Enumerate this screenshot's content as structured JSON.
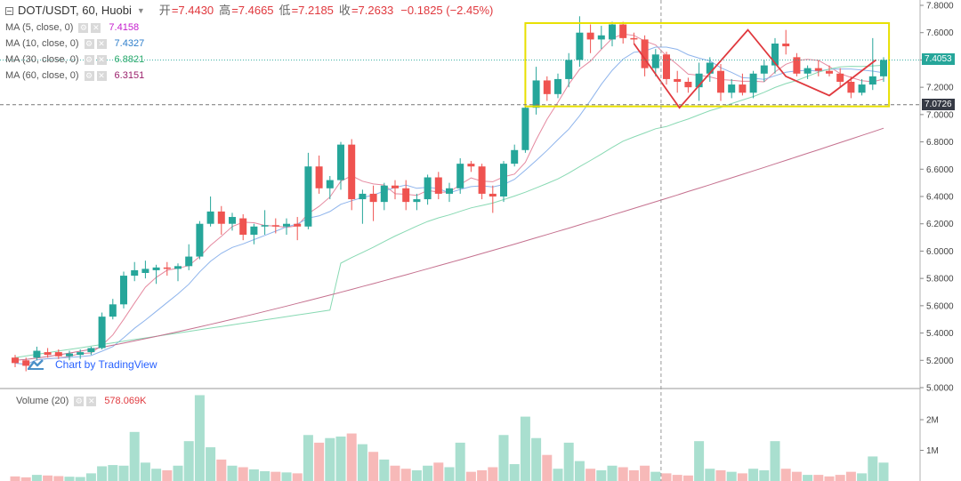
{
  "header": {
    "symbol": "DOT/USDT, 60, Huobi",
    "ohlc": [
      {
        "key": "开",
        "value": "=7.4430"
      },
      {
        "key": "高",
        "value": "=7.4665"
      },
      {
        "key": "低",
        "value": "=7.2185"
      },
      {
        "key": "收",
        "value": "=7.2633"
      }
    ],
    "change": "−0.1825 (−2.45%)"
  },
  "indicators": [
    {
      "label": "MA (5, close, 0)",
      "value": "7.4158",
      "color": "#c51cce"
    },
    {
      "label": "MA (10, close, 0)",
      "value": "7.4327",
      "color": "#2e7ecb"
    },
    {
      "label": "MA (30, close, 0)",
      "value": "6.8821",
      "color": "#26a86a"
    },
    {
      "label": "MA (60, close, 0)",
      "value": "6.3151",
      "color": "#9a1f6b"
    }
  ],
  "volume_legend": {
    "label": "Volume (20)",
    "value": "578.069K"
  },
  "watermark": "Chart by TradingView",
  "price_tags": {
    "last": "7.4053",
    "crosshair": "7.0726"
  },
  "chart_data": {
    "type": "candlestick",
    "ylim": [
      5.0,
      7.8
    ],
    "y_ticks": [
      "7.8000",
      "7.6000",
      "7.4000",
      "7.2000",
      "7.0000",
      "6.8000",
      "6.6000",
      "6.4000",
      "6.2000",
      "6.0000",
      "5.8000",
      "5.6000",
      "5.4000",
      "5.2000",
      "5.0000"
    ],
    "y_tick_values": [
      7.8,
      7.6,
      7.4,
      7.2,
      7.0,
      6.8,
      6.6,
      6.4,
      6.2,
      6.0,
      5.8,
      5.6,
      5.4,
      5.2,
      5.0
    ],
    "vol_ticks": [
      "2M",
      "1M"
    ],
    "vol_tick_values": [
      2000000,
      1000000
    ],
    "vol_ylim": [
      0,
      2900000
    ],
    "candles": [
      {
        "o": 5.22,
        "h": 5.24,
        "l": 5.15,
        "c": 5.18,
        "v": 150000
      },
      {
        "o": 5.2,
        "h": 5.22,
        "l": 5.12,
        "c": 5.16,
        "v": 120000
      },
      {
        "o": 5.22,
        "h": 5.3,
        "l": 5.2,
        "c": 5.27,
        "v": 200000
      },
      {
        "o": 5.26,
        "h": 5.29,
        "l": 5.22,
        "c": 5.24,
        "v": 180000
      },
      {
        "o": 5.26,
        "h": 5.28,
        "l": 5.21,
        "c": 5.23,
        "v": 160000
      },
      {
        "o": 5.23,
        "h": 5.27,
        "l": 5.2,
        "c": 5.25,
        "v": 140000
      },
      {
        "o": 5.24,
        "h": 5.28,
        "l": 5.21,
        "c": 5.26,
        "v": 130000
      },
      {
        "o": 5.26,
        "h": 5.3,
        "l": 5.24,
        "c": 5.29,
        "v": 250000
      },
      {
        "o": 5.29,
        "h": 5.55,
        "l": 5.28,
        "c": 5.52,
        "v": 480000
      },
      {
        "o": 5.52,
        "h": 5.65,
        "l": 5.5,
        "c": 5.61,
        "v": 520000
      },
      {
        "o": 5.61,
        "h": 5.85,
        "l": 5.58,
        "c": 5.82,
        "v": 500000
      },
      {
        "o": 5.82,
        "h": 5.92,
        "l": 5.78,
        "c": 5.86,
        "v": 1600000
      },
      {
        "o": 5.84,
        "h": 5.93,
        "l": 5.8,
        "c": 5.87,
        "v": 600000
      },
      {
        "o": 5.86,
        "h": 5.9,
        "l": 5.76,
        "c": 5.88,
        "v": 400000
      },
      {
        "o": 5.88,
        "h": 5.92,
        "l": 5.82,
        "c": 5.87,
        "v": 350000
      },
      {
        "o": 5.87,
        "h": 5.91,
        "l": 5.78,
        "c": 5.89,
        "v": 500000
      },
      {
        "o": 5.89,
        "h": 6.05,
        "l": 5.86,
        "c": 5.96,
        "v": 1300000
      },
      {
        "o": 5.96,
        "h": 6.22,
        "l": 5.94,
        "c": 6.2,
        "v": 2800000
      },
      {
        "o": 6.2,
        "h": 6.4,
        "l": 6.18,
        "c": 6.29,
        "v": 1100000
      },
      {
        "o": 6.29,
        "h": 6.33,
        "l": 6.12,
        "c": 6.2,
        "v": 700000
      },
      {
        "o": 6.2,
        "h": 6.28,
        "l": 6.15,
        "c": 6.25,
        "v": 500000
      },
      {
        "o": 6.24,
        "h": 6.27,
        "l": 6.08,
        "c": 6.12,
        "v": 450000
      },
      {
        "o": 6.12,
        "h": 6.2,
        "l": 6.05,
        "c": 6.18,
        "v": 380000
      },
      {
        "o": 6.18,
        "h": 6.3,
        "l": 6.12,
        "c": 6.19,
        "v": 320000
      },
      {
        "o": 6.19,
        "h": 6.24,
        "l": 6.13,
        "c": 6.18,
        "v": 300000
      },
      {
        "o": 6.18,
        "h": 6.24,
        "l": 6.12,
        "c": 6.2,
        "v": 280000
      },
      {
        "o": 6.2,
        "h": 6.25,
        "l": 6.08,
        "c": 6.18,
        "v": 250000
      },
      {
        "o": 6.18,
        "h": 6.72,
        "l": 6.16,
        "c": 6.62,
        "v": 1500000
      },
      {
        "o": 6.62,
        "h": 6.7,
        "l": 6.42,
        "c": 6.46,
        "v": 1250000
      },
      {
        "o": 6.46,
        "h": 6.55,
        "l": 6.38,
        "c": 6.52,
        "v": 1400000
      },
      {
        "o": 6.52,
        "h": 6.8,
        "l": 6.45,
        "c": 6.78,
        "v": 1450000
      },
      {
        "o": 6.78,
        "h": 6.82,
        "l": 6.3,
        "c": 6.38,
        "v": 1550000
      },
      {
        "o": 6.38,
        "h": 6.45,
        "l": 6.2,
        "c": 6.42,
        "v": 1200000
      },
      {
        "o": 6.42,
        "h": 6.48,
        "l": 6.22,
        "c": 6.36,
        "v": 950000
      },
      {
        "o": 6.36,
        "h": 6.5,
        "l": 6.3,
        "c": 6.48,
        "v": 700000
      },
      {
        "o": 6.48,
        "h": 6.52,
        "l": 6.38,
        "c": 6.46,
        "v": 500000
      },
      {
        "o": 6.46,
        "h": 6.52,
        "l": 6.3,
        "c": 6.36,
        "v": 400000
      },
      {
        "o": 6.36,
        "h": 6.42,
        "l": 6.3,
        "c": 6.38,
        "v": 350000
      },
      {
        "o": 6.38,
        "h": 6.56,
        "l": 6.34,
        "c": 6.54,
        "v": 500000
      },
      {
        "o": 6.54,
        "h": 6.58,
        "l": 6.38,
        "c": 6.42,
        "v": 600000
      },
      {
        "o": 6.42,
        "h": 6.5,
        "l": 6.36,
        "c": 6.46,
        "v": 450000
      },
      {
        "o": 6.46,
        "h": 6.68,
        "l": 6.42,
        "c": 6.64,
        "v": 1250000
      },
      {
        "o": 6.64,
        "h": 6.66,
        "l": 6.58,
        "c": 6.62,
        "v": 300000
      },
      {
        "o": 6.62,
        "h": 6.64,
        "l": 6.38,
        "c": 6.42,
        "v": 350000
      },
      {
        "o": 6.42,
        "h": 6.48,
        "l": 6.28,
        "c": 6.4,
        "v": 450000
      },
      {
        "o": 6.4,
        "h": 6.66,
        "l": 6.36,
        "c": 6.64,
        "v": 1500000
      },
      {
        "o": 6.64,
        "h": 6.78,
        "l": 6.62,
        "c": 6.74,
        "v": 550000
      },
      {
        "o": 6.74,
        "h": 7.3,
        "l": 6.72,
        "c": 7.05,
        "v": 2100000
      },
      {
        "o": 7.05,
        "h": 7.35,
        "l": 7.0,
        "c": 7.25,
        "v": 1400000
      },
      {
        "o": 7.25,
        "h": 7.28,
        "l": 7.1,
        "c": 7.15,
        "v": 850000
      },
      {
        "o": 7.15,
        "h": 7.3,
        "l": 7.12,
        "c": 7.26,
        "v": 400000
      },
      {
        "o": 7.26,
        "h": 7.45,
        "l": 7.2,
        "c": 7.4,
        "v": 1250000
      },
      {
        "o": 7.4,
        "h": 7.72,
        "l": 7.35,
        "c": 7.6,
        "v": 650000
      },
      {
        "o": 7.6,
        "h": 7.66,
        "l": 7.45,
        "c": 7.55,
        "v": 400000
      },
      {
        "o": 7.55,
        "h": 7.65,
        "l": 7.48,
        "c": 7.58,
        "v": 350000
      },
      {
        "o": 7.55,
        "h": 7.68,
        "l": 7.5,
        "c": 7.66,
        "v": 500000
      },
      {
        "o": 7.66,
        "h": 7.68,
        "l": 7.52,
        "c": 7.56,
        "v": 450000
      },
      {
        "o": 7.56,
        "h": 7.6,
        "l": 7.52,
        "c": 7.55,
        "v": 350000
      },
      {
        "o": 7.55,
        "h": 7.58,
        "l": 7.28,
        "c": 7.34,
        "v": 500000
      },
      {
        "o": 7.34,
        "h": 7.48,
        "l": 7.28,
        "c": 7.44,
        "v": 300000
      },
      {
        "o": 7.44,
        "h": 7.46,
        "l": 7.22,
        "c": 7.26,
        "v": 250000
      },
      {
        "o": 7.26,
        "h": 7.32,
        "l": 7.16,
        "c": 7.24,
        "v": 200000
      },
      {
        "o": 7.24,
        "h": 7.27,
        "l": 7.16,
        "c": 7.2,
        "v": 180000
      },
      {
        "o": 7.2,
        "h": 7.38,
        "l": 7.1,
        "c": 7.3,
        "v": 1300000
      },
      {
        "o": 7.3,
        "h": 7.42,
        "l": 7.24,
        "c": 7.38,
        "v": 400000
      },
      {
        "o": 7.32,
        "h": 7.37,
        "l": 7.1,
        "c": 7.16,
        "v": 350000
      },
      {
        "o": 7.16,
        "h": 7.26,
        "l": 7.12,
        "c": 7.22,
        "v": 300000
      },
      {
        "o": 7.22,
        "h": 7.3,
        "l": 7.14,
        "c": 7.16,
        "v": 250000
      },
      {
        "o": 7.16,
        "h": 7.32,
        "l": 7.12,
        "c": 7.3,
        "v": 400000
      },
      {
        "o": 7.3,
        "h": 7.4,
        "l": 7.24,
        "c": 7.36,
        "v": 350000
      },
      {
        "o": 7.36,
        "h": 7.56,
        "l": 7.3,
        "c": 7.52,
        "v": 1300000
      },
      {
        "o": 7.52,
        "h": 7.62,
        "l": 7.44,
        "c": 7.5,
        "v": 400000
      },
      {
        "o": 7.42,
        "h": 7.45,
        "l": 7.28,
        "c": 7.3,
        "v": 300000
      },
      {
        "o": 7.3,
        "h": 7.36,
        "l": 7.26,
        "c": 7.34,
        "v": 200000
      },
      {
        "o": 7.34,
        "h": 7.4,
        "l": 7.28,
        "c": 7.32,
        "v": 200000
      },
      {
        "o": 7.32,
        "h": 7.36,
        "l": 7.28,
        "c": 7.3,
        "v": 150000
      },
      {
        "o": 7.3,
        "h": 7.34,
        "l": 7.2,
        "c": 7.24,
        "v": 200000
      },
      {
        "o": 7.24,
        "h": 7.28,
        "l": 7.12,
        "c": 7.16,
        "v": 300000
      },
      {
        "o": 7.16,
        "h": 7.26,
        "l": 7.14,
        "c": 7.22,
        "v": 250000
      },
      {
        "o": 7.22,
        "h": 7.56,
        "l": 7.18,
        "c": 7.28,
        "v": 800000
      },
      {
        "o": 7.28,
        "h": 7.42,
        "l": 7.24,
        "c": 7.4,
        "v": 600000
      }
    ],
    "ma_series": [
      {
        "period": 5,
        "color": "#e58aa0"
      },
      {
        "period": 10,
        "color": "#8eb4ec"
      },
      {
        "period": 30,
        "color": "#88d9b3"
      },
      {
        "period": 60,
        "color": "#c5718f"
      }
    ],
    "range_box": {
      "x0": 47,
      "x1": 80.5,
      "y0": 7.06,
      "y1": 7.67,
      "color": "#e8e000"
    },
    "zigzag": [
      [
        57,
        7.52
      ],
      [
        61.2,
        7.05
      ],
      [
        67.5,
        7.62
      ],
      [
        71,
        7.28
      ],
      [
        75,
        7.14
      ],
      [
        79.3,
        7.4
      ]
    ],
    "zigzag_color": "#e0393e",
    "crosshair": {
      "x": 59.5,
      "y": 7.0726
    },
    "colors": {
      "up": "#26a69a",
      "down": "#ef5350",
      "up_vol": "#a9dfcf",
      "down_vol": "#f7b9b8"
    }
  }
}
